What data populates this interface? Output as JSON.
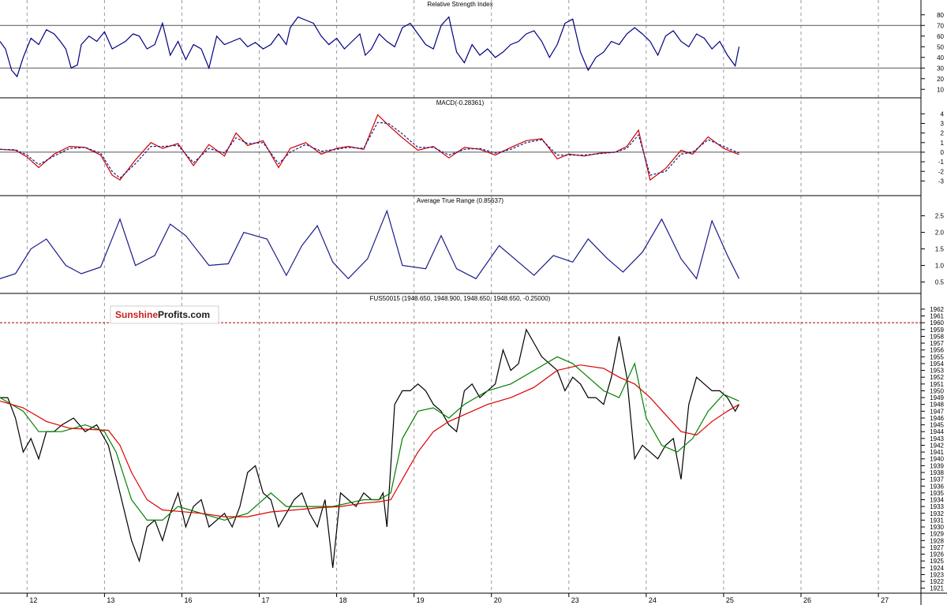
{
  "chart_data": [
    {
      "id": "rsi",
      "type": "line",
      "title": "Relative Strength Index",
      "ylim": [
        5,
        85
      ],
      "yticks": [
        10,
        20,
        30,
        40,
        50,
        60,
        70,
        80
      ],
      "hlines": [
        30,
        70
      ],
      "series": [
        {
          "color": "#000080",
          "x": [
            0,
            0.07,
            0.15,
            0.22,
            0.3,
            0.4,
            0.5,
            0.6,
            0.7,
            0.78,
            0.85,
            0.92,
            1.0,
            1.05,
            1.15,
            1.25,
            1.35,
            1.45,
            1.55,
            1.62,
            1.72,
            1.8,
            1.9,
            2.0,
            2.1,
            2.2,
            2.3,
            2.4,
            2.5,
            2.6,
            2.7,
            2.8,
            2.9,
            3.0,
            3.1,
            3.2,
            3.3,
            3.4,
            3.5,
            3.6,
            3.7,
            3.75,
            3.85,
            3.95,
            4.05,
            4.15,
            4.25,
            4.35,
            4.45,
            4.55,
            4.65,
            4.72,
            4.8,
            4.9,
            5.0,
            5.1,
            5.2,
            5.3,
            5.4,
            5.5,
            5.6,
            5.7,
            5.8,
            5.9,
            6.0,
            6.1,
            6.2,
            6.3,
            6.4,
            6.5,
            6.6,
            6.7,
            6.8,
            6.9,
            7.0,
            7.1,
            7.2,
            7.3,
            7.4,
            7.5,
            7.6,
            7.7,
            7.8,
            7.9,
            8.0,
            8.1,
            8.2,
            8.3,
            8.4,
            8.5,
            8.6,
            8.7,
            8.8,
            8.9,
            9.0,
            9.1,
            9.2,
            9.3,
            9.4,
            9.5,
            9.55
          ],
          "y": [
            55,
            48,
            28,
            22,
            40,
            58,
            52,
            66,
            62,
            55,
            48,
            30,
            33,
            52,
            60,
            55,
            64,
            48,
            52,
            55,
            62,
            60,
            48,
            52,
            72,
            42,
            55,
            38,
            52,
            48,
            30,
            60,
            52,
            55,
            58,
            50,
            54,
            48,
            52,
            62,
            52,
            68,
            78,
            75,
            72,
            60,
            52,
            58,
            48,
            55,
            62,
            42,
            48,
            62,
            55,
            50,
            68,
            72,
            62,
            52,
            48,
            70,
            78,
            45,
            35,
            52,
            42,
            48,
            40,
            45,
            52,
            55,
            62,
            65,
            55,
            40,
            52,
            72,
            76,
            45,
            28,
            40,
            45,
            55,
            52,
            62,
            68,
            62,
            55,
            42,
            60,
            65,
            55,
            50,
            62,
            58,
            48,
            55,
            42,
            32,
            50
          ]
        }
      ]
    },
    {
      "id": "macd",
      "type": "line",
      "title": "MACD(-0.28361)",
      "ylim": [
        -4.2,
        4.6
      ],
      "yticks": [
        4,
        3,
        2,
        1,
        0,
        -1,
        -2,
        -3
      ],
      "hlines": [
        0
      ],
      "series": [
        {
          "color": "#cc0000",
          "x": [
            0,
            0.2,
            0.35,
            0.5,
            0.7,
            0.9,
            1.1,
            1.3,
            1.45,
            1.55,
            1.75,
            1.95,
            2.1,
            2.3,
            2.5,
            2.7,
            2.9,
            3.05,
            3.2,
            3.4,
            3.6,
            3.75,
            3.95,
            4.15,
            4.35,
            4.5,
            4.7,
            4.88,
            5.02,
            5.2,
            5.4,
            5.6,
            5.8,
            6.0,
            6.2,
            6.4,
            6.6,
            6.8,
            7.0,
            7.2,
            7.35,
            7.55,
            7.75,
            7.95,
            8.1,
            8.25,
            8.4,
            8.6,
            8.8,
            8.95,
            9.15,
            9.35,
            9.55
          ],
          "y": [
            0.3,
            0.2,
            -0.5,
            -1.6,
            -0.2,
            0.6,
            0.5,
            -0.3,
            -2.4,
            -2.9,
            -0.8,
            1.0,
            0.4,
            0.9,
            -1.4,
            0.8,
            -0.4,
            2.0,
            0.7,
            1.2,
            -1.6,
            0.4,
            1.0,
            -0.2,
            0.4,
            0.6,
            0.3,
            3.9,
            2.8,
            1.5,
            0.2,
            0.6,
            -0.6,
            0.5,
            0.3,
            -0.3,
            0.5,
            1.2,
            1.4,
            -0.7,
            -0.2,
            -0.4,
            -0.1,
            0.0,
            0.6,
            2.3,
            -2.9,
            -1.7,
            0.2,
            -0.2,
            1.6,
            0.4,
            -0.25
          ]
        },
        {
          "color": "#1a1a8a",
          "dashed": true,
          "x": [
            0,
            0.2,
            0.35,
            0.5,
            0.7,
            0.9,
            1.1,
            1.3,
            1.45,
            1.55,
            1.75,
            1.95,
            2.1,
            2.3,
            2.5,
            2.7,
            2.9,
            3.05,
            3.2,
            3.4,
            3.6,
            3.75,
            3.95,
            4.15,
            4.35,
            4.5,
            4.7,
            4.88,
            5.02,
            5.2,
            5.4,
            5.6,
            5.8,
            6.0,
            6.2,
            6.4,
            6.6,
            6.8,
            7.0,
            7.2,
            7.35,
            7.55,
            7.75,
            7.95,
            8.1,
            8.25,
            8.4,
            8.6,
            8.8,
            8.95,
            9.15,
            9.35,
            9.55
          ],
          "y": [
            0.3,
            0.25,
            -0.3,
            -1.3,
            -0.4,
            0.4,
            0.5,
            -0.1,
            -2.0,
            -2.7,
            -1.2,
            0.6,
            0.6,
            0.7,
            -1.1,
            0.4,
            -0.1,
            1.5,
            0.9,
            1.0,
            -1.2,
            0.0,
            0.8,
            0.1,
            0.3,
            0.5,
            0.4,
            3.1,
            3.0,
            1.9,
            0.5,
            0.5,
            -0.3,
            0.3,
            0.4,
            -0.1,
            0.3,
            1.0,
            1.3,
            -0.3,
            -0.3,
            -0.3,
            -0.15,
            0.0,
            0.4,
            1.8,
            -2.4,
            -2.0,
            -0.2,
            0.0,
            1.3,
            0.6,
            -0.1
          ]
        }
      ]
    },
    {
      "id": "atr",
      "type": "line",
      "title": "Average True Range (0.85637)",
      "ylim": [
        0.25,
        2.8
      ],
      "yticks": [
        2.5,
        2.0,
        1.5,
        1.0,
        0.5
      ],
      "hlines": [],
      "series": [
        {
          "color": "#1a1a8a",
          "x": [
            0,
            0.2,
            0.4,
            0.6,
            0.85,
            1.05,
            1.3,
            1.55,
            1.75,
            2.0,
            2.2,
            2.4,
            2.7,
            2.95,
            3.15,
            3.45,
            3.7,
            3.9,
            4.1,
            4.3,
            4.5,
            4.75,
            5.0,
            5.2,
            5.5,
            5.7,
            5.9,
            6.15,
            6.45,
            6.65,
            6.9,
            7.15,
            7.4,
            7.6,
            7.85,
            8.05,
            8.3,
            8.55,
            8.8,
            9.0,
            9.2,
            9.4,
            9.55
          ],
          "y": [
            0.6,
            0.75,
            1.5,
            1.8,
            1.0,
            0.75,
            0.95,
            2.4,
            1.0,
            1.3,
            2.25,
            1.9,
            1.0,
            1.05,
            2.0,
            1.8,
            0.7,
            1.6,
            2.2,
            1.1,
            0.6,
            1.2,
            2.65,
            1.0,
            0.9,
            1.9,
            0.9,
            0.6,
            1.6,
            1.2,
            0.7,
            1.3,
            1.1,
            1.8,
            1.2,
            0.8,
            1.4,
            2.4,
            1.2,
            0.6,
            2.35,
            1.3,
            0.6
          ]
        }
      ]
    },
    {
      "id": "price",
      "type": "line",
      "title": "FUS50015 (1948.650, 1948.900, 1948.650, 1948.650, -0.25000)",
      "ylim": [
        1920.5,
        1962.8
      ],
      "yticks_from": 1921,
      "yticks_to": 1962,
      "hlines_dashed": [
        1960
      ],
      "series": [
        {
          "name": "price",
          "color": "#000000",
          "x": [
            0,
            0.1,
            0.2,
            0.3,
            0.4,
            0.5,
            0.6,
            0.7,
            0.8,
            0.95,
            1.1,
            1.25,
            1.4,
            1.55,
            1.7,
            1.8,
            1.9,
            2.0,
            2.1,
            2.2,
            2.3,
            2.4,
            2.5,
            2.6,
            2.7,
            2.8,
            2.9,
            3.0,
            3.1,
            3.2,
            3.3,
            3.4,
            3.5,
            3.6,
            3.7,
            3.8,
            3.9,
            4.0,
            4.1,
            4.2,
            4.3,
            4.4,
            4.5,
            4.6,
            4.7,
            4.8,
            4.9,
            4.95,
            5.0,
            5.1,
            5.2,
            5.3,
            5.4,
            5.5,
            5.6,
            5.7,
            5.8,
            5.9,
            6.0,
            6.1,
            6.2,
            6.3,
            6.4,
            6.5,
            6.6,
            6.7,
            6.8,
            6.9,
            7.0,
            7.1,
            7.2,
            7.3,
            7.4,
            7.5,
            7.6,
            7.7,
            7.8,
            7.9,
            8.0,
            8.1,
            8.2,
            8.3,
            8.4,
            8.5,
            8.6,
            8.7,
            8.8,
            8.9,
            9.0,
            9.1,
            9.2,
            9.3,
            9.4,
            9.5,
            9.55
          ],
          "y": [
            1949,
            1949,
            1946,
            1941,
            1943,
            1940,
            1944,
            1944,
            1945,
            1946,
            1944,
            1945,
            1942,
            1935,
            1928,
            1925,
            1930,
            1931,
            1928,
            1932,
            1935,
            1930,
            1933,
            1934,
            1930,
            1931,
            1932,
            1930,
            1933,
            1938,
            1939,
            1935,
            1934,
            1930,
            1932,
            1934,
            1935,
            1932,
            1930,
            1934,
            1924,
            1935,
            1934,
            1933,
            1935,
            1934,
            1934,
            1935,
            1930,
            1948,
            1950,
            1950,
            1951,
            1950,
            1948,
            1947,
            1945,
            1944,
            1950,
            1951,
            1949,
            1950,
            1951,
            1956,
            1953,
            1954,
            1959,
            1957,
            1955,
            1954,
            1953,
            1950,
            1952,
            1951,
            1949,
            1949,
            1948,
            1952,
            1958,
            1952,
            1940,
            1942,
            1941,
            1940,
            1942,
            1943,
            1937,
            1948,
            1952,
            1951,
            1950,
            1950,
            1949,
            1947,
            1948
          ]
        },
        {
          "name": "ma-fast",
          "color": "#008000",
          "x": [
            0,
            0.3,
            0.5,
            0.8,
            1.1,
            1.35,
            1.5,
            1.7,
            1.9,
            2.1,
            2.3,
            2.6,
            2.9,
            3.2,
            3.5,
            3.7,
            4.0,
            4.3,
            4.5,
            4.7,
            4.9,
            5.05,
            5.2,
            5.4,
            5.6,
            5.8,
            6.0,
            6.3,
            6.6,
            6.9,
            7.2,
            7.4,
            7.6,
            7.8,
            8.0,
            8.2,
            8.35,
            8.55,
            8.75,
            8.95,
            9.15,
            9.35,
            9.55
          ],
          "y": [
            1949,
            1947,
            1944,
            1944,
            1945,
            1944,
            1941,
            1934,
            1931,
            1931,
            1933,
            1932,
            1931,
            1932,
            1935,
            1933,
            1933,
            1933,
            1933.5,
            1934,
            1934,
            1935,
            1943,
            1947,
            1947.5,
            1946,
            1948,
            1950,
            1951,
            1953,
            1955,
            1954,
            1952,
            1950,
            1949,
            1954,
            1946,
            1942,
            1941,
            1943,
            1947,
            1949.5,
            1948.5
          ]
        },
        {
          "name": "ma-slow",
          "color": "#dd0000",
          "x": [
            0,
            0.3,
            0.6,
            0.9,
            1.2,
            1.4,
            1.55,
            1.7,
            1.9,
            2.1,
            2.3,
            2.6,
            2.9,
            3.2,
            3.5,
            3.8,
            4.1,
            4.4,
            4.7,
            4.9,
            5.05,
            5.2,
            5.4,
            5.6,
            5.8,
            6.0,
            6.3,
            6.6,
            6.9,
            7.2,
            7.5,
            7.8,
            8.0,
            8.2,
            8.4,
            8.6,
            8.8,
            9.0,
            9.2,
            9.4,
            9.55
          ],
          "y": [
            1948.5,
            1947.5,
            1945.5,
            1944.5,
            1944.3,
            1944.2,
            1942,
            1938,
            1934,
            1932.5,
            1932.3,
            1932,
            1931.5,
            1931.5,
            1932.2,
            1932.5,
            1932.8,
            1933,
            1933.5,
            1933.7,
            1934,
            1937,
            1941,
            1944,
            1945.5,
            1946.5,
            1948,
            1949,
            1950.5,
            1953,
            1953.8,
            1953.3,
            1952,
            1951,
            1949,
            1946.5,
            1944,
            1943.5,
            1945.5,
            1947,
            1948
          ]
        }
      ]
    }
  ],
  "x_axis": {
    "day_ticks": [
      {
        "x": 0.35,
        "label": "12"
      },
      {
        "x": 1.35,
        "label": "13"
      },
      {
        "x": 2.35,
        "label": "16"
      },
      {
        "x": 3.35,
        "label": "17"
      },
      {
        "x": 4.35,
        "label": "18"
      },
      {
        "x": 5.35,
        "label": "19"
      },
      {
        "x": 6.35,
        "label": "20"
      },
      {
        "x": 7.35,
        "label": "23"
      },
      {
        "x": 8.35,
        "label": "24"
      },
      {
        "x": 9.35,
        "label": "25"
      },
      {
        "x": 10.35,
        "label": "26"
      },
      {
        "x": 11.35,
        "label": "27"
      }
    ],
    "xlim": [
      0,
      11.9
    ]
  },
  "logo": {
    "part1": "Sunshine",
    "part2": "Profits.com"
  },
  "colors": {
    "grid": "#9a9a9a",
    "level_line": "#aa0000"
  }
}
